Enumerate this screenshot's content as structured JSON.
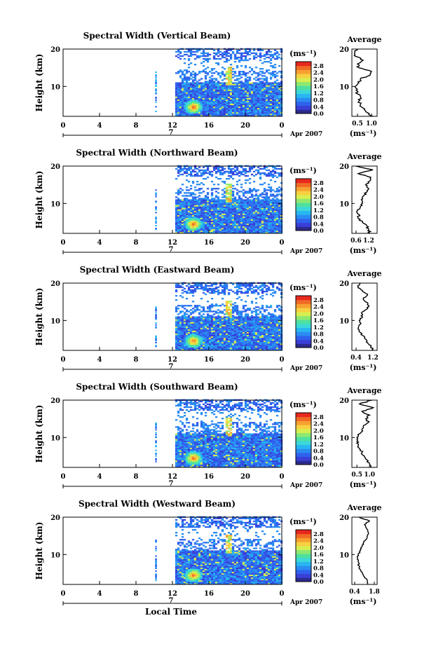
{
  "figure": {
    "xlabel": "Local Time",
    "ylabel": "Height (km)",
    "date_label": "Apr 2007",
    "day_label": "7",
    "colorbar_unit": "(ms⁻¹)",
    "average_title": "Average",
    "average_xlabel": "(ms⁻¹)"
  },
  "chart_data": [
    {
      "type": "heatmap",
      "title": "Spectral Width (Vertical Beam)",
      "x_ticks": [
        "0",
        "4",
        "8",
        "12",
        "16",
        "20",
        "0"
      ],
      "y_ticks": [
        "20",
        "10"
      ],
      "xlim": [
        0,
        24
      ],
      "ylim": [
        2,
        20
      ],
      "colorbar_ticks": [
        "2.8",
        "2.4",
        "2.0",
        "1.6",
        "1.2",
        "0.8",
        "0.4",
        "0.0"
      ],
      "colorbar_range": [
        0,
        3.0
      ],
      "avg_x_ticks": [
        "0.5",
        "1.0"
      ],
      "avg_xlim": [
        0.3,
        1.2
      ],
      "avg_profile": {
        "height": [
          2,
          3,
          4,
          5,
          6,
          7,
          8,
          9,
          10,
          11,
          12,
          13,
          14,
          15,
          16,
          17,
          18,
          19,
          20
        ],
        "value": [
          1.05,
          0.85,
          0.75,
          0.6,
          0.55,
          0.62,
          0.5,
          0.45,
          0.42,
          0.55,
          0.6,
          0.95,
          1.0,
          0.55,
          0.5,
          0.7,
          0.45,
          0.4,
          0.5
        ]
      }
    },
    {
      "type": "heatmap",
      "title": "Spectral Width (Northward Beam)",
      "x_ticks": [
        "0",
        "4",
        "8",
        "12",
        "16",
        "20",
        "0"
      ],
      "y_ticks": [
        "20",
        "10"
      ],
      "xlim": [
        0,
        24
      ],
      "ylim": [
        2,
        20
      ],
      "colorbar_ticks": [
        "2.8",
        "2.4",
        "2.0",
        "1.6",
        "1.2",
        "0.8",
        "0.4",
        "0.0"
      ],
      "colorbar_range": [
        0,
        3.0
      ],
      "avg_x_ticks": [
        "0.6",
        "1.2"
      ],
      "avg_xlim": [
        0.4,
        1.6
      ],
      "avg_profile": {
        "height": [
          2,
          3,
          4,
          5,
          6,
          7,
          8,
          9,
          10,
          11,
          12,
          13,
          14,
          15,
          16,
          17,
          18,
          19,
          20
        ],
        "value": [
          1.25,
          1.2,
          1.1,
          0.9,
          0.7,
          0.75,
          0.65,
          0.8,
          0.9,
          0.85,
          0.95,
          1.1,
          1.2,
          1.05,
          1.25,
          1.3,
          0.7,
          1.4,
          0.6
        ]
      }
    },
    {
      "type": "heatmap",
      "title": "Spectral Width (Eastward Beam)",
      "x_ticks": [
        "0",
        "4",
        "8",
        "12",
        "16",
        "20",
        "0"
      ],
      "y_ticks": [
        "20",
        "10"
      ],
      "xlim": [
        0,
        24
      ],
      "ylim": [
        2,
        20
      ],
      "colorbar_ticks": [
        "2.8",
        "2.4",
        "2.0",
        "1.6",
        "1.2",
        "0.8",
        "0.4",
        "0.0"
      ],
      "colorbar_range": [
        0,
        3.0
      ],
      "avg_x_ticks": [
        "0.4",
        "1.2"
      ],
      "avg_xlim": [
        0.2,
        1.4
      ],
      "avg_profile": {
        "height": [
          2,
          3,
          4,
          5,
          6,
          7,
          8,
          9,
          10,
          11,
          12,
          13,
          14,
          15,
          16,
          17,
          18,
          19,
          20
        ],
        "value": [
          1.15,
          1.1,
          0.95,
          0.85,
          0.7,
          0.55,
          0.5,
          0.6,
          0.55,
          0.7,
          0.65,
          0.9,
          1.0,
          0.85,
          0.75,
          0.95,
          0.7,
          0.5,
          0.6
        ]
      }
    },
    {
      "type": "heatmap",
      "title": "Spectral Width (Southward Beam)",
      "x_ticks": [
        "0",
        "4",
        "8",
        "12",
        "16",
        "20",
        "0"
      ],
      "y_ticks": [
        "20",
        "10"
      ],
      "xlim": [
        0,
        24
      ],
      "ylim": [
        2,
        20
      ],
      "colorbar_ticks": [
        "2.8",
        "2.4",
        "2.0",
        "1.6",
        "1.2",
        "0.8",
        "0.4",
        "0.0"
      ],
      "colorbar_range": [
        0,
        3.0
      ],
      "avg_x_ticks": [
        "0.5",
        "1.0"
      ],
      "avg_xlim": [
        0.3,
        1.3
      ],
      "avg_profile": {
        "height": [
          2,
          3,
          4,
          5,
          6,
          7,
          8,
          9,
          10,
          11,
          12,
          13,
          14,
          15,
          16,
          17,
          18,
          19,
          20
        ],
        "value": [
          1.05,
          1.0,
          0.9,
          0.8,
          0.7,
          0.6,
          0.55,
          0.5,
          0.5,
          0.6,
          0.7,
          0.75,
          0.95,
          0.85,
          1.0,
          0.7,
          1.15,
          0.6,
          1.1
        ]
      }
    },
    {
      "type": "heatmap",
      "title": "Spectral Width (Westward Beam)",
      "x_ticks": [
        "0",
        "4",
        "8",
        "12",
        "16",
        "20",
        "0"
      ],
      "y_ticks": [
        "20",
        "10"
      ],
      "xlim": [
        0,
        24
      ],
      "ylim": [
        2,
        20
      ],
      "colorbar_ticks": [
        "2.8",
        "2.4",
        "2.0",
        "1.6",
        "1.2",
        "0.8",
        "0.4",
        "0.0"
      ],
      "colorbar_range": [
        0,
        3.0
      ],
      "avg_x_ticks": [
        "0.4",
        "1.8"
      ],
      "avg_xlim": [
        0.2,
        2.0
      ],
      "avg_profile": {
        "height": [
          2,
          3,
          4,
          5,
          6,
          7,
          8,
          9,
          10,
          11,
          12,
          13,
          14,
          15,
          16,
          17,
          18,
          19,
          20
        ],
        "value": [
          1.35,
          1.3,
          1.1,
          0.95,
          0.8,
          0.7,
          0.65,
          0.6,
          0.65,
          0.8,
          0.9,
          1.0,
          1.2,
          1.3,
          1.35,
          1.25,
          1.1,
          1.45,
          0.7
        ]
      }
    }
  ]
}
